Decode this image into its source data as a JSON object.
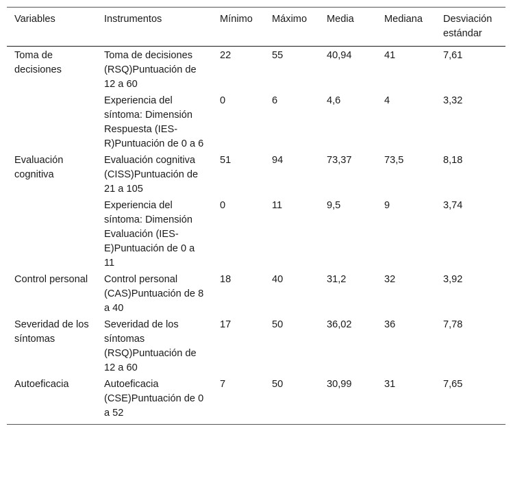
{
  "table": {
    "headers": [
      "Variables",
      "Instrumentos",
      "Mínimo",
      "Máximo",
      "Media",
      "Mediana",
      "Desviación estándar"
    ],
    "rows": [
      {
        "variable": "Toma de decisiones",
        "instrument": "Toma de decisiones (RSQ)Puntuación de 12 a 60",
        "min": "22",
        "max": "55",
        "mean": "40,94",
        "median": "41",
        "sd": "7,61"
      },
      {
        "variable": "",
        "instrument": "Experiencia del síntoma: Dimensión Respuesta (IES-R)Puntuación de 0 a 6",
        "min": "0",
        "max": "6",
        "mean": "4,6",
        "median": "4",
        "sd": "3,32"
      },
      {
        "variable": "Evaluación cognitiva",
        "instrument": "Evaluación cognitiva (CISS)Puntuación de 21 a 105",
        "min": "51",
        "max": "94",
        "mean": "73,37",
        "median": "73,5",
        "sd": "8,18"
      },
      {
        "variable": "",
        "instrument": "Experiencia del síntoma: Dimensión Evaluación (IES-E)Puntuación de 0 a 11",
        "min": "0",
        "max": "11",
        "mean": "9,5",
        "median": "9",
        "sd": "3,74"
      },
      {
        "variable": "Control personal",
        "instrument": "Control personal (CAS)Puntuación de 8 a 40",
        "min": "18",
        "max": "40",
        "mean": "31,2",
        "median": "32",
        "sd": "3,92"
      },
      {
        "variable": "Severidad de los síntomas",
        "instrument": "Severidad de los síntomas (RSQ)Puntuación de 12 a 60",
        "min": "17",
        "max": "50",
        "mean": "36,02",
        "median": "36",
        "sd": "7,78"
      },
      {
        "variable": "Autoeficacia",
        "instrument": "Autoeficacia (CSE)Puntuación de 0 a 52",
        "min": "7",
        "max": "50",
        "mean": "30,99",
        "median": "31",
        "sd": "7,65"
      }
    ]
  }
}
